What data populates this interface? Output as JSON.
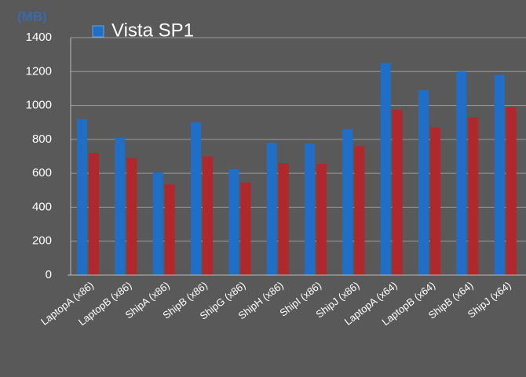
{
  "chart_data": {
    "type": "bar",
    "y_label": "(MB)",
    "categories": [
      "LaptopA (x86)",
      "LaptopB (x86)",
      "ShipA (x86)",
      "ShipB (x86)",
      "ShipG (x86)",
      "ShipH (x86)",
      "ShipI (x86)",
      "ShipJ (x86)",
      "LaptopA (x64)",
      "LaptopB (x64)",
      "ShipB (x64)",
      "ShipJ (x64)"
    ],
    "series": [
      {
        "name": "Vista SP1",
        "color": "#1f6fc8",
        "values": [
          920,
          810,
          605,
          900,
          625,
          780,
          775,
          860,
          1250,
          1090,
          1200,
          1180
        ]
      },
      {
        "color": "#b0282c",
        "values": [
          720,
          690,
          535,
          700,
          545,
          660,
          655,
          760,
          975,
          870,
          930,
          990
        ]
      }
    ],
    "ylim": [
      0,
      1400
    ],
    "yticks": [
      0,
      200,
      400,
      600,
      800,
      1000,
      1200,
      1400
    ],
    "grid": true,
    "legend": "top-left"
  }
}
